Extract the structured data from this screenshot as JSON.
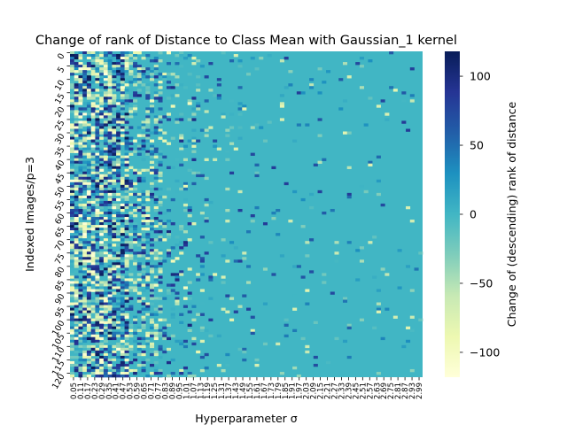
{
  "chart_data": {
    "type": "heatmap",
    "title": "Change of rank of Distance to Class Mean with Gaussian_1 kernel",
    "xlabel": "Hyperparameter σ",
    "ylabel": "Indexed Images/p=3",
    "colorbar_label": "Change of (descending) rank of distance",
    "colormap": "YlGnBu",
    "value_range": [
      -118,
      118
    ],
    "colorbar_ticks": [
      "100",
      "50",
      "0",
      "−50",
      "−100"
    ],
    "colorbar_tick_values": [
      100,
      50,
      0,
      -50,
      -100
    ],
    "x_tick_labels": [
      "0.05",
      "0.11",
      "0.17",
      "0.23",
      "0.29",
      "0.35",
      "0.41",
      "0.47",
      "0.53",
      "0.59",
      "0.65",
      "0.71",
      "0.77",
      "0.83",
      "0.89",
      "0.95",
      "1.01",
      "1.07",
      "1.13",
      "1.19",
      "1.25",
      "1.31",
      "1.37",
      "1.43",
      "1.49",
      "1.55",
      "1.61",
      "1.67",
      "1.73",
      "1.79",
      "1.85",
      "1.91",
      "1.97",
      "2.03",
      "2.09",
      "2.15",
      "2.21",
      "2.27",
      "2.33",
      "2.39",
      "2.45",
      "2.51",
      "2.57",
      "2.63",
      "2.69",
      "2.75",
      "2.81",
      "2.87",
      "2.93",
      "2.99"
    ],
    "y_tick_labels": [
      "0",
      "5",
      "10",
      "15",
      "20",
      "25",
      "30",
      "35",
      "40",
      "45",
      "50",
      "55",
      "60",
      "65",
      "70",
      "75",
      "80",
      "85",
      "90",
      "95",
      "100",
      "105",
      "110",
      "115",
      "120"
    ],
    "n_columns": 84,
    "n_rows": 122,
    "background_value": 0,
    "columns_note": "sigma from 0.05 to 3.00 in steps of ~0.035; most cells near 0, strong +/- changes concentrated at small sigma"
  }
}
